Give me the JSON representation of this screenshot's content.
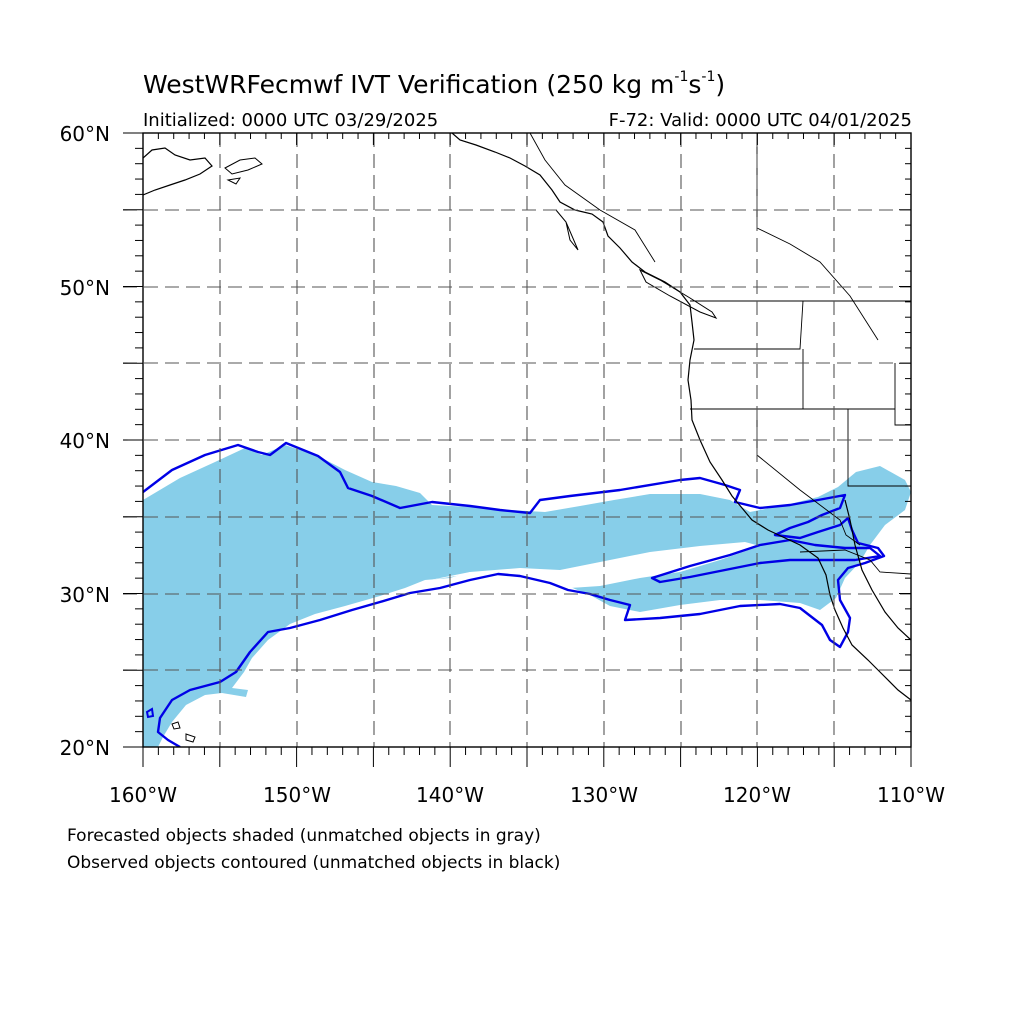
{
  "title": {
    "text": "WestWRFecmwf IVT Verification (250 kg m",
    "sup1": "-1",
    "mid": "s",
    "sup2": "-1",
    "close": ")"
  },
  "initialized": "Initialized: 0000 UTC 03/29/2025",
  "valid": "F-72: Valid: 0000 UTC 04/01/2025",
  "lat_labels": [
    "60°N",
    "50°N",
    "40°N",
    "30°N",
    "20°N"
  ],
  "lon_labels": [
    "160°W",
    "150°W",
    "140°W",
    "130°W",
    "120°W",
    "110°W"
  ],
  "notes": {
    "line1": "Forecasted objects shaded (unmatched objects in gray)",
    "line2": "Observed objects contoured (unmatched objects in black)"
  },
  "colors": {
    "forecast_fill": "#87cee9",
    "observed_contour": "#0000e6",
    "coast": "#000000",
    "grid": "#555555"
  },
  "map": {
    "lon_range": [
      -160,
      -110
    ],
    "lat_range": [
      20,
      60
    ],
    "grid_step_deg": 5
  }
}
